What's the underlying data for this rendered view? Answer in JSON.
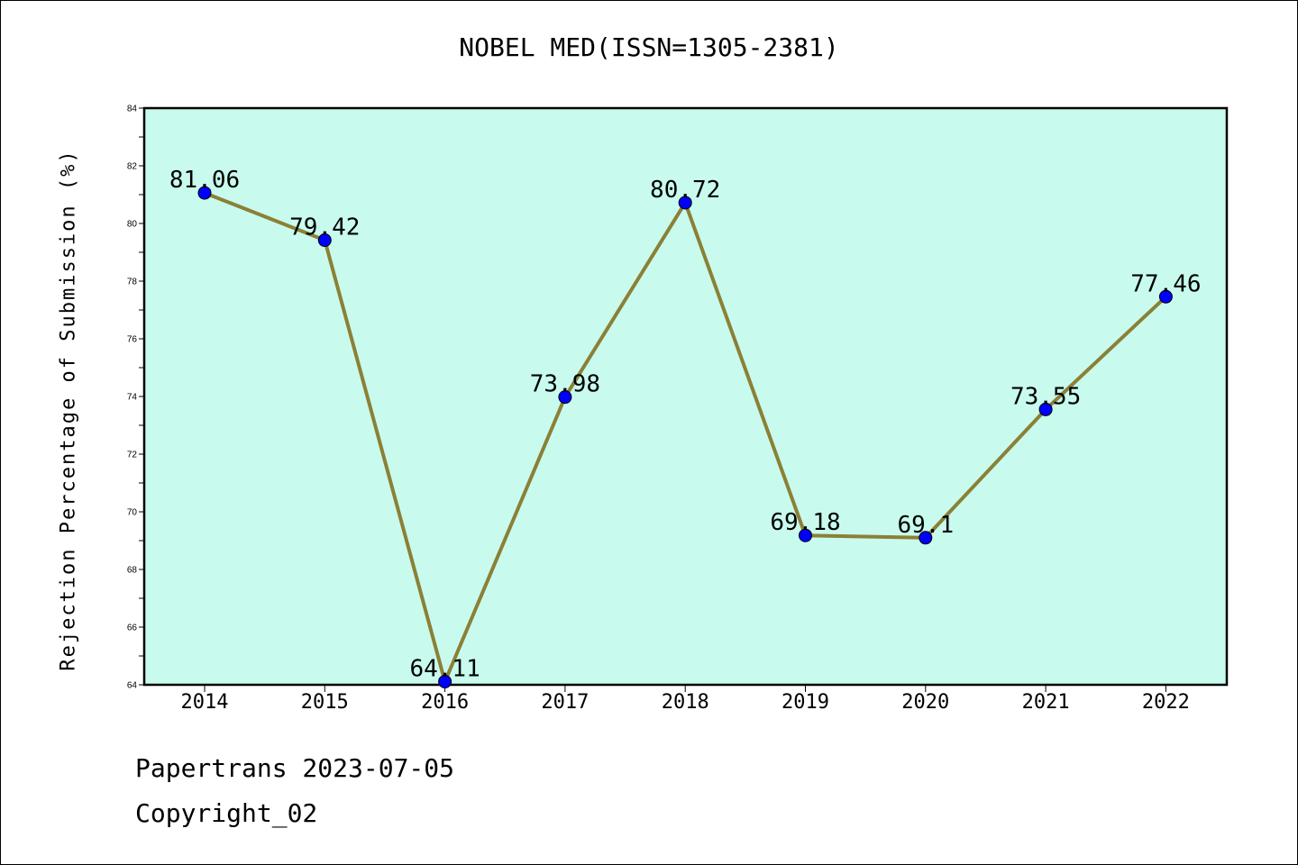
{
  "title": "NOBEL MED(ISSN=1305-2381)",
  "footer": {
    "date_line": "Papertrans 2023-07-05",
    "copyright_line": "Copyright_02"
  },
  "colors": {
    "plot_background": "#c8fbee",
    "line": "#8b8036",
    "marker": "#0000ff"
  },
  "chart_data": {
    "type": "line",
    "title": "NOBEL MED(ISSN=1305-2381)",
    "xlabel": "",
    "ylabel": "Rejection Percentage of Submission (%)",
    "x": [
      "2014",
      "2015",
      "2016",
      "2017",
      "2018",
      "2019",
      "2020",
      "2021",
      "2022"
    ],
    "series": [
      {
        "values": [
          81.06,
          79.42,
          64.11,
          73.98,
          80.72,
          69.18,
          69.1,
          73.55,
          77.46
        ]
      }
    ],
    "data_labels": [
      "81.06",
      "79.42",
      "64.11",
      "73.98",
      "80.72",
      "69.18",
      "69.1",
      "73.55",
      "77.46"
    ],
    "ylim": [
      64,
      84
    ],
    "yticks": [
      64,
      66,
      68,
      70,
      72,
      74,
      76,
      78,
      80,
      82,
      84
    ],
    "grid": false,
    "legend": "none"
  }
}
